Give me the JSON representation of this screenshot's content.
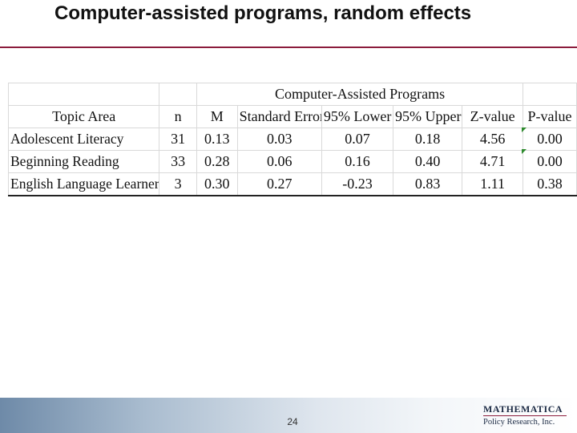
{
  "slide": {
    "title": "Computer-assisted programs, random effects",
    "page_number": "24"
  },
  "table": {
    "group_header": "Computer-Assisted Programs",
    "columns": [
      "Topic Area",
      "n",
      "M",
      "Standard Error",
      "95% Lower",
      "95% Upper",
      "Z-value",
      "P-value"
    ],
    "rows": [
      {
        "topic": "Adolescent Literacy",
        "n": "31",
        "m": "0.13",
        "se": "0.03",
        "lower": "0.07",
        "upper": "0.18",
        "z": "4.56",
        "p": "0.00"
      },
      {
        "topic": "Beginning Reading",
        "n": "33",
        "m": "0.28",
        "se": "0.06",
        "lower": "0.16",
        "upper": "0.40",
        "z": "4.71",
        "p": "0.00"
      },
      {
        "topic": "English Language Learners",
        "n": "3",
        "m": "0.30",
        "se": "0.27",
        "lower": "-0.23",
        "upper": "0.83",
        "z": "1.11",
        "p": "0.38"
      }
    ]
  },
  "footer": {
    "logo_line1": "MATHEMATICA",
    "logo_line2": "Policy Research, Inc.",
    "accent_color": "#8b1c3c"
  }
}
